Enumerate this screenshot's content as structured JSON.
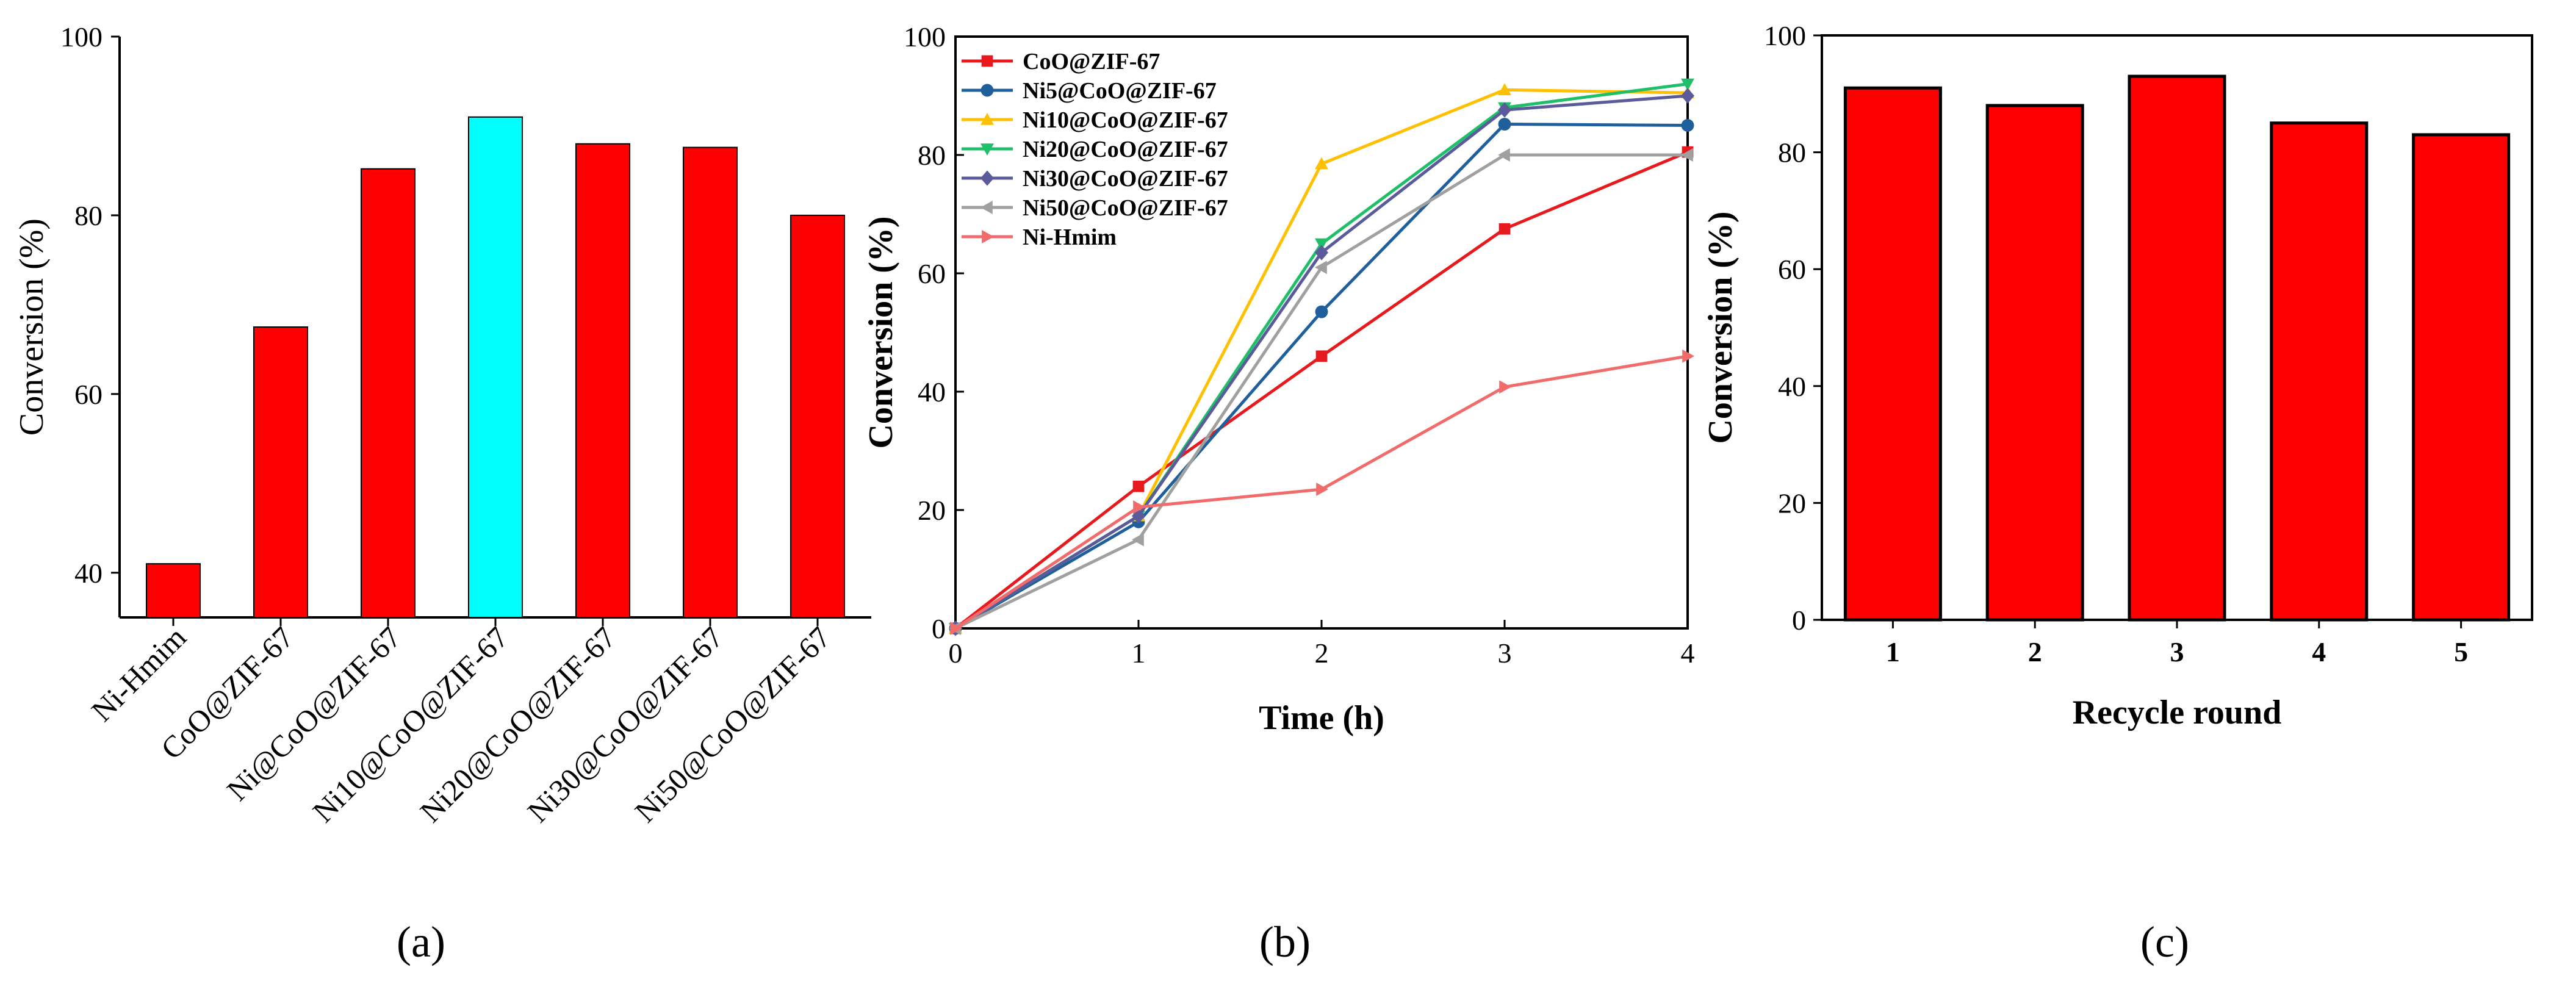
{
  "chart_data": [
    {
      "panel": "(a)",
      "type": "bar",
      "ylabel": "Conversion (%)",
      "ylim": [
        35,
        100
      ],
      "yticks": [
        40,
        60,
        80,
        100
      ],
      "categories": [
        "Ni-Hmim",
        "CoO@ZIF-67",
        "Ni@CoO@ZIF-67",
        "Ni10@CoO@ZIF-67",
        "Ni20@CoO@ZIF-67",
        "Ni30@CoO@ZIF-67",
        "Ni50@CoO@ZIF-67"
      ],
      "values": [
        41,
        67.5,
        85.2,
        91,
        88,
        87.6,
        80
      ],
      "colors": [
        "#ff0000",
        "#ff0000",
        "#ff0000",
        "#00ffff",
        "#ff0000",
        "#ff0000",
        "#ff0000"
      ]
    },
    {
      "panel": "(b)",
      "type": "line",
      "xlabel": "Time (h)",
      "ylabel": "Conversion (%)",
      "xlim": [
        0,
        4
      ],
      "ylim": [
        0,
        100
      ],
      "xticks": [
        0,
        1,
        2,
        3,
        4
      ],
      "yticks": [
        0,
        20,
        40,
        60,
        80,
        100
      ],
      "x": [
        0,
        1,
        2,
        3,
        4
      ],
      "series": [
        {
          "name": "CoO@ZIF-67",
          "color": "#e8191d",
          "marker": "square",
          "values": [
            0,
            24,
            46,
            67.5,
            80.5
          ]
        },
        {
          "name": "Ni5@CoO@ZIF-67",
          "color": "#1f5f9b",
          "marker": "circle",
          "values": [
            0,
            18,
            53.5,
            85.2,
            85
          ]
        },
        {
          "name": "Ni10@CoO@ZIF-67",
          "color": "#ffc000",
          "marker": "triangle-up",
          "values": [
            0,
            19,
            78.5,
            91,
            90.5
          ]
        },
        {
          "name": "Ni20@CoO@ZIF-67",
          "color": "#1fbf6a",
          "marker": "triangle-down",
          "values": [
            0,
            19,
            65,
            88,
            92
          ]
        },
        {
          "name": "Ni30@CoO@ZIF-67",
          "color": "#5b5b9c",
          "marker": "diamond",
          "values": [
            0,
            19,
            63.5,
            87.6,
            90
          ]
        },
        {
          "name": "Ni50@CoO@ZIF-67",
          "color": "#a0a0a0",
          "marker": "triangle-left",
          "values": [
            0,
            15,
            61,
            80,
            80
          ]
        },
        {
          "name": "Ni-Hmim",
          "color": "#f26b6b",
          "marker": "triangle-right",
          "values": [
            0,
            20.5,
            23.5,
            40.8,
            46
          ]
        }
      ]
    },
    {
      "panel": "(c)",
      "type": "bar",
      "xlabel": "Recycle round",
      "ylabel": "Conversion (%)",
      "ylim": [
        0,
        100
      ],
      "yticks": [
        0,
        20,
        40,
        60,
        80,
        100
      ],
      "categories": [
        "1",
        "2",
        "3",
        "4",
        "5"
      ],
      "values": [
        91,
        88,
        93,
        85,
        83
      ],
      "colors": [
        "#ff0000",
        "#ff0000",
        "#ff0000",
        "#ff0000",
        "#ff0000"
      ]
    }
  ]
}
